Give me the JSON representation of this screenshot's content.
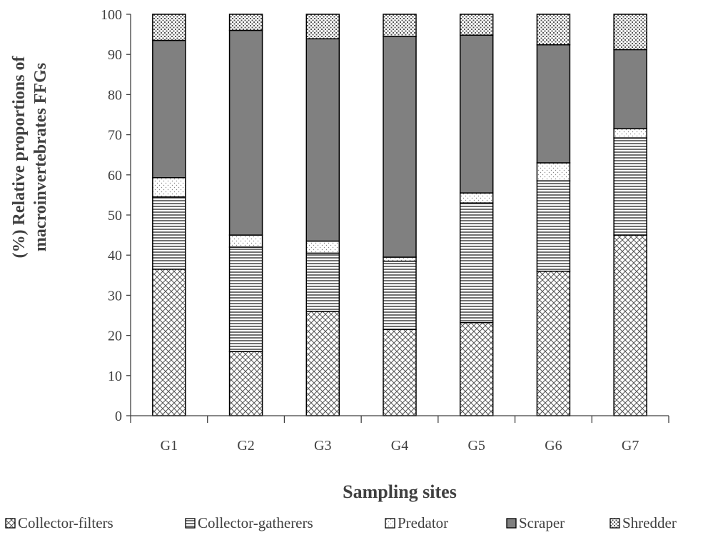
{
  "chart_data": {
    "type": "bar",
    "stacked": true,
    "categories": [
      "G1",
      "G2",
      "G3",
      "G4",
      "G5",
      "G6",
      "G7"
    ],
    "series": [
      {
        "name": "Collector-filters",
        "pattern": "crosshatch",
        "values": [
          36.5,
          16,
          26,
          21.5,
          23.2,
          36,
          45
        ]
      },
      {
        "name": "Collector-gatherers",
        "pattern": "horizontal-lines",
        "values": [
          18,
          26,
          14.5,
          17,
          29.8,
          22.5,
          24.2
        ]
      },
      {
        "name": "Predator",
        "pattern": "dots",
        "values": [
          4.8,
          3,
          3,
          1,
          2.5,
          4.5,
          2.3
        ]
      },
      {
        "name": "Scraper",
        "pattern": "solid-gray",
        "values": [
          34.2,
          51,
          50.4,
          55,
          39.3,
          29.4,
          19.7
        ]
      },
      {
        "name": "Shredder",
        "pattern": "dense-dots",
        "values": [
          6.5,
          4,
          6.1,
          5.5,
          5.2,
          7.6,
          8.8
        ]
      }
    ],
    "title": "",
    "xlabel": "Sampling sites",
    "ylabel_lines": [
      "(%) Relative proportions of",
      "macroinvertebrates  FFGs"
    ],
    "ylim": [
      0,
      100
    ],
    "yticks": [
      0,
      10,
      20,
      30,
      40,
      50,
      60,
      70,
      80,
      90,
      100
    ],
    "grid": false,
    "legend_position": "bottom",
    "colors": {
      "scraper": "#808080",
      "outline": "#000000",
      "axis": "#404040",
      "pattern_dark": "#555555"
    }
  }
}
